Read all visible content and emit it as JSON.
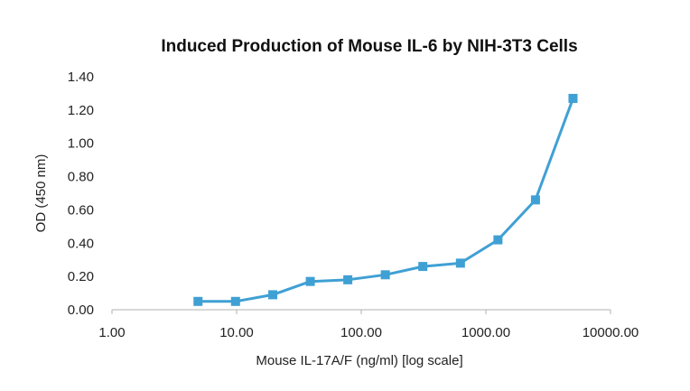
{
  "chart_data": {
    "type": "line",
    "title": "Induced Production of Mouse IL-6 by NIH-3T3 Cells",
    "xlabel": "Mouse IL-17A/F (ng/ml) [log scale]",
    "ylabel": "OD (450 nm)",
    "x_scale": "log",
    "xlim": [
      1,
      10000
    ],
    "ylim": [
      0,
      1.4
    ],
    "x_ticks": [
      "1.00",
      "10.00",
      "100.00",
      "1000.00",
      "10000.00"
    ],
    "y_ticks": [
      "0.00",
      "0.20",
      "0.40",
      "0.60",
      "0.80",
      "1.00",
      "1.20",
      "1.40"
    ],
    "grid": false,
    "legend": "none",
    "marker": "square",
    "color": "#3FA0D4",
    "series": [
      {
        "x": [
          4.9,
          9.8,
          19.5,
          39,
          78,
          156,
          312,
          625,
          1250,
          2500,
          5000
        ],
        "y": [
          0.05,
          0.05,
          0.09,
          0.17,
          0.18,
          0.21,
          0.26,
          0.28,
          0.42,
          0.66,
          1.27
        ]
      }
    ]
  }
}
